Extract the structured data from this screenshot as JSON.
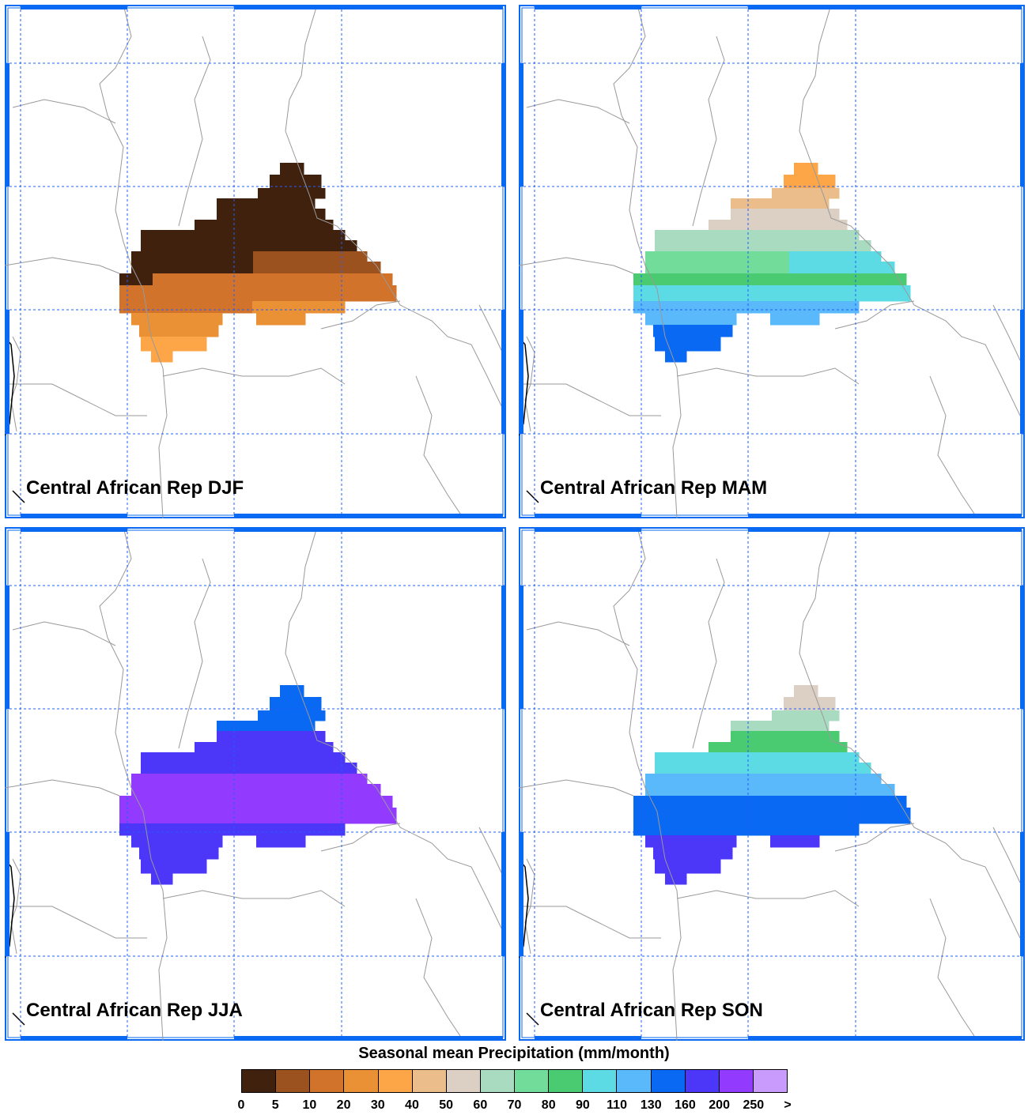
{
  "map": {
    "panels": [
      {
        "label": "Central African Rep DJF",
        "season": "DJF"
      },
      {
        "label": "Central African Rep MAM",
        "season": "MAM"
      },
      {
        "label": "Central African Rep JJA",
        "season": "JJA"
      },
      {
        "label": "Central African Rep SON",
        "season": "SON"
      }
    ],
    "legend": {
      "title": "Seasonal mean Precipitation (mm/month)",
      "colors": [
        "#40210d",
        "#9c521f",
        "#d2732b",
        "#e99134",
        "#fca648",
        "#ebbd8a",
        "#dccfc3",
        "#a8dbbf",
        "#72dc9b",
        "#4acb72",
        "#5cdbe5",
        "#5ab9fa",
        "#0a69f2",
        "#4c36f8",
        "#923bff",
        "#c89bfc"
      ],
      "ticks": [
        "0",
        "5",
        "10",
        "20",
        "30",
        "40",
        "50",
        "60",
        "70",
        "80",
        "90",
        "110",
        "130",
        "160",
        "200",
        "250",
        ">"
      ]
    },
    "accent_colors": {
      "frame": "#0a69f2",
      "grid": "#1f5fff",
      "border": "#999999"
    }
  }
}
